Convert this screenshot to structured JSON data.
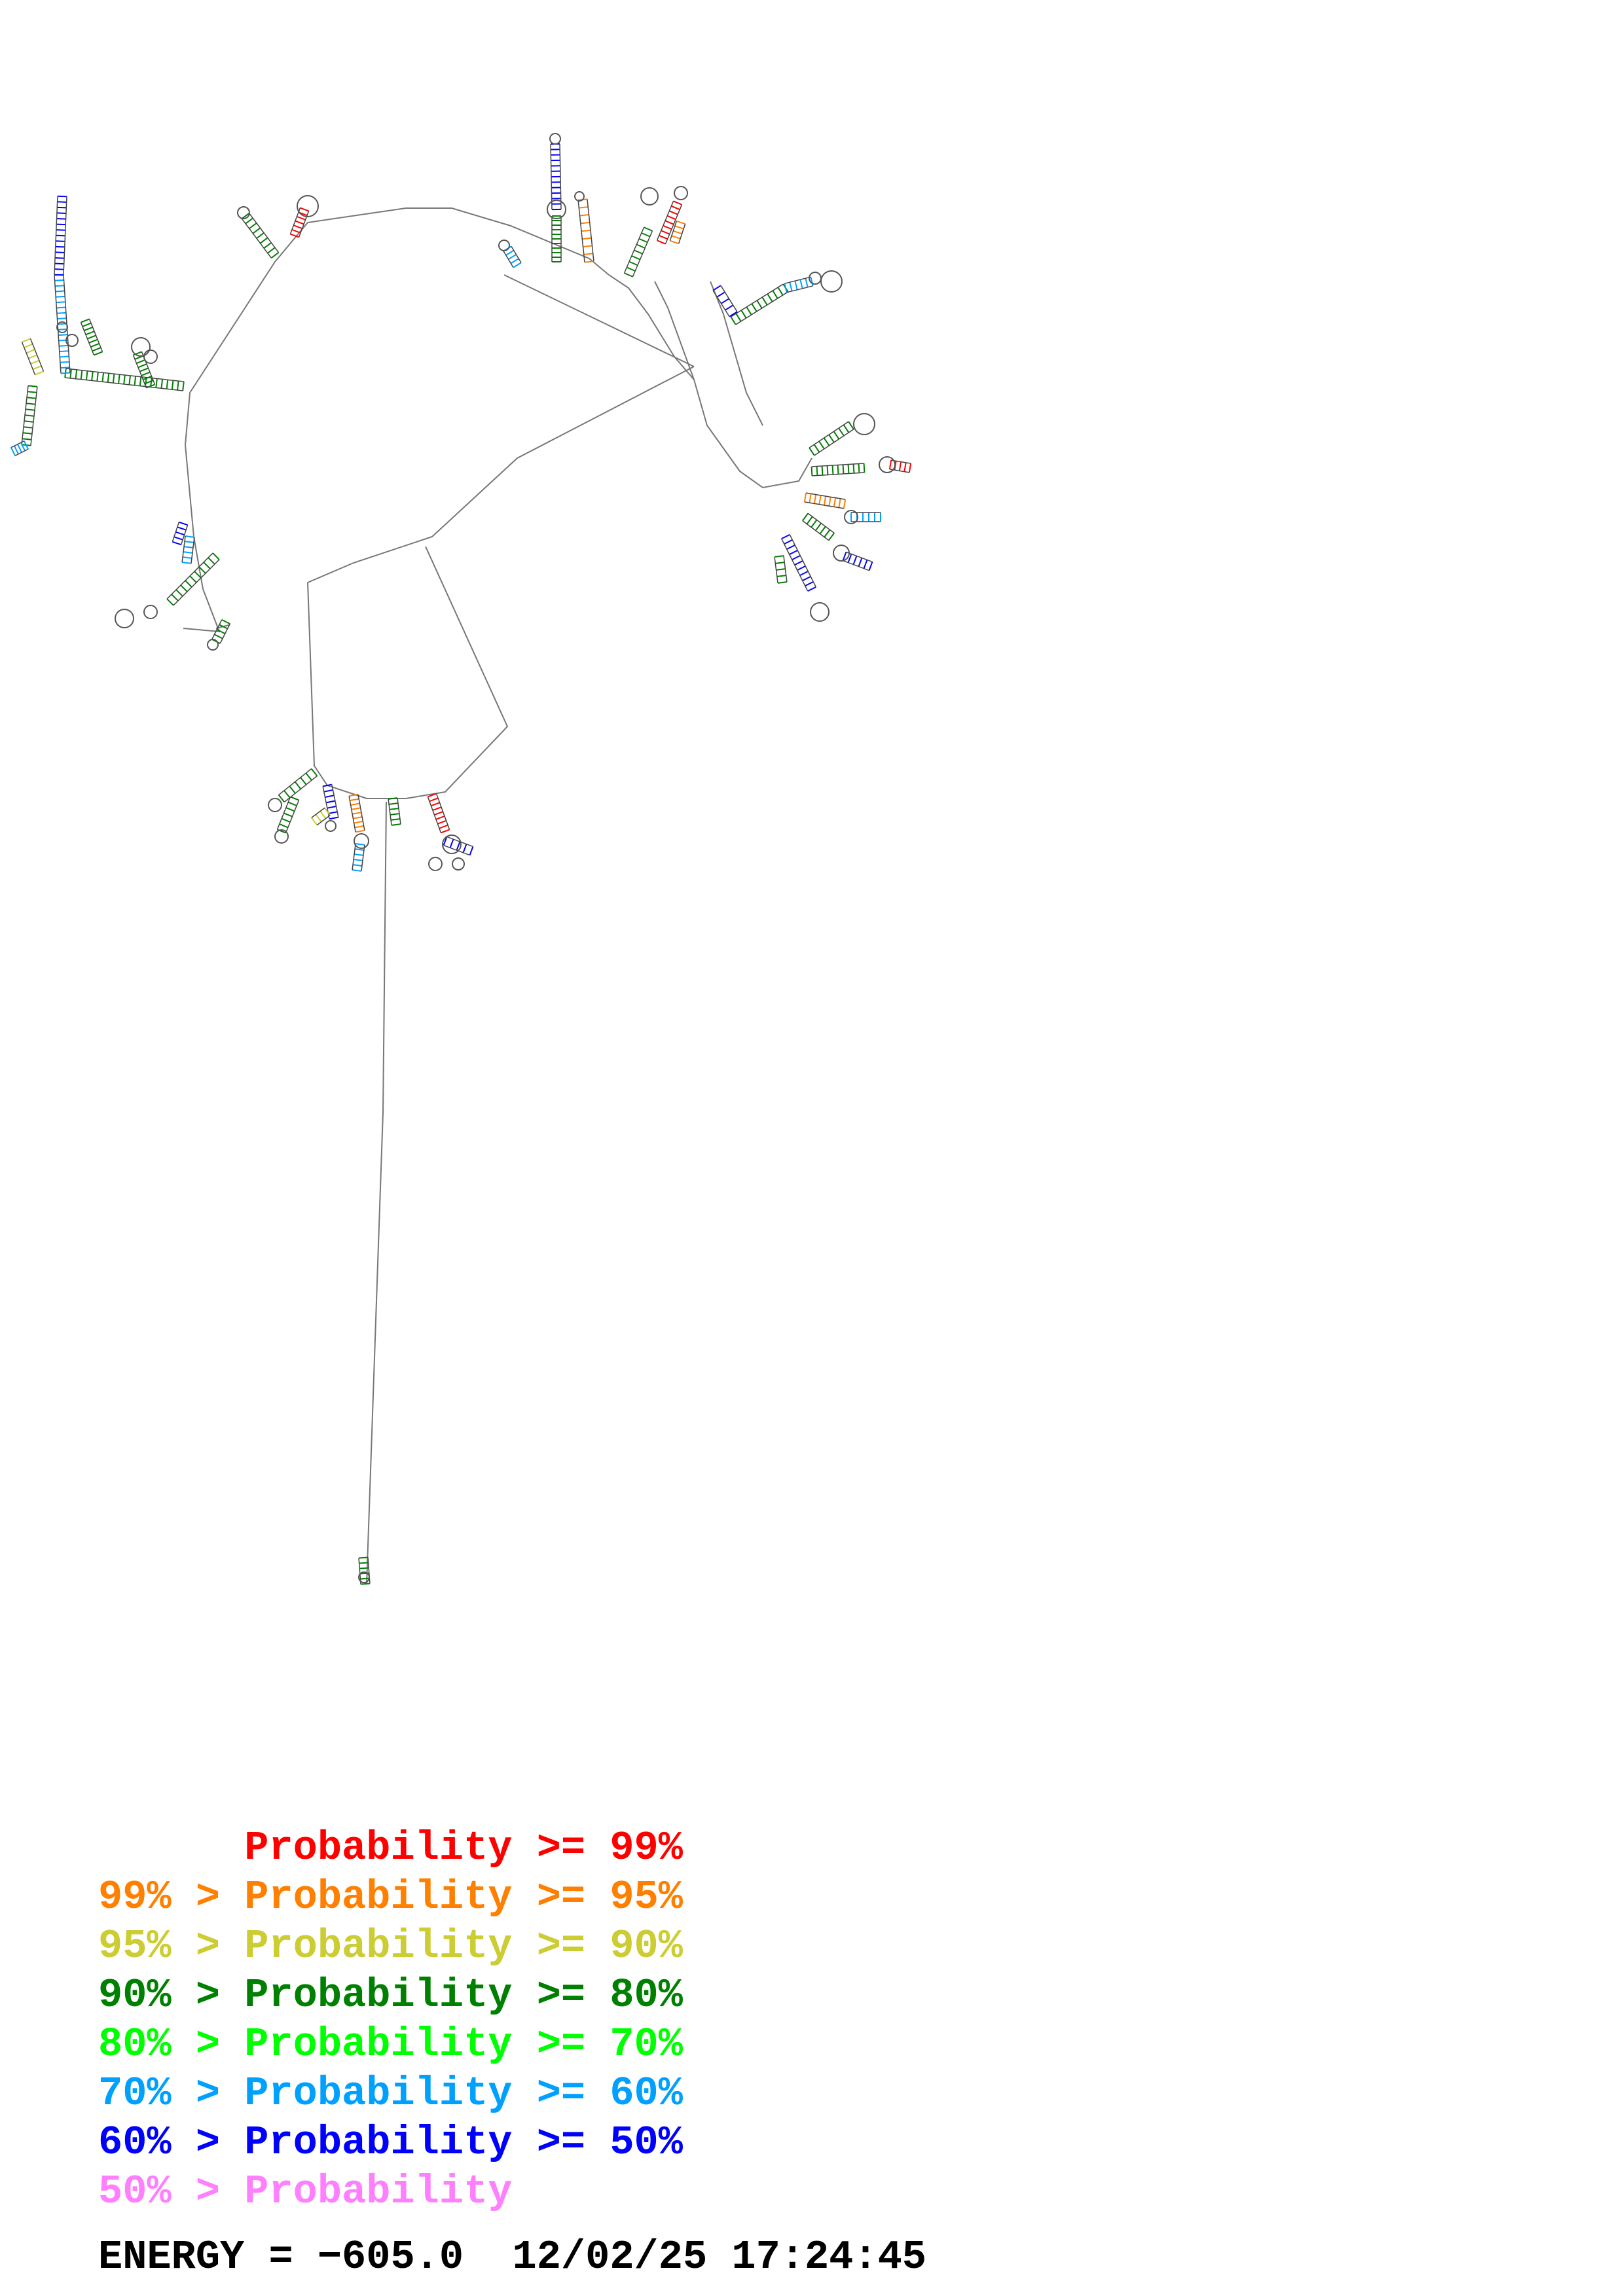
{
  "colors": {
    "backbone": "#555555",
    "p99": "#ff0000",
    "p95": "#ff8000",
    "p90": "#cccc33",
    "p80": "#008000",
    "p70": "#00ff00",
    "p60": "#00a0ff",
    "p50": "#0000ff",
    "lt50": "#ff80ff"
  },
  "legend": {
    "rows": [
      {
        "text": "      Probability >= 99%",
        "color": "#ff0000"
      },
      {
        "text": "99% > Probability >= 95%",
        "color": "#ff8000"
      },
      {
        "text": "95% > Probability >= 90%",
        "color": "#cccc33"
      },
      {
        "text": "90% > Probability >= 80%",
        "color": "#008000"
      },
      {
        "text": "80% > Probability >= 70%",
        "color": "#00ff00"
      },
      {
        "text": "70% > Probability >= 60%",
        "color": "#00a0ff"
      },
      {
        "text": "60% > Probability >= 50%",
        "color": "#0000ff"
      },
      {
        "text": "50% > Probability",
        "color": "#ff80ff"
      }
    ]
  },
  "footer": {
    "energy_text": "ENERGY = −605.0  12/02/25 17:24:45"
  }
}
